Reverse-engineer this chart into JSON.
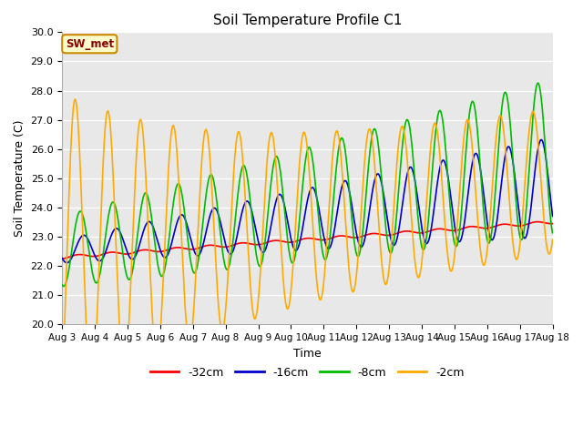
{
  "title": "Soil Temperature Profile C1",
  "xlabel": "Time",
  "ylabel": "Soil Temperature (C)",
  "ylim": [
    20.0,
    30.0
  ],
  "yticks": [
    20.0,
    21.0,
    22.0,
    23.0,
    24.0,
    25.0,
    26.0,
    27.0,
    28.0,
    29.0,
    30.0
  ],
  "plot_bg": "#e8e8e8",
  "fig_bg": "#ffffff",
  "grid_color": "#ffffff",
  "annotation_label": "SW_met",
  "annotation_color": "#8b0000",
  "annotation_bg": "#ffffcc",
  "annotation_border": "#cc8800",
  "colors": {
    "-32cm": "#ff0000",
    "-16cm": "#0000cc",
    "-8cm": "#00bb00",
    "-2cm": "#ffaa00"
  },
  "line_width": 1.2,
  "x_ticks": [
    3,
    4,
    5,
    6,
    7,
    8,
    9,
    10,
    11,
    12,
    13,
    14,
    15,
    16,
    17,
    18
  ],
  "x_tick_labels": [
    "Aug 3",
    "Aug 4",
    "Aug 5",
    "Aug 6",
    "Aug 7",
    "Aug 8",
    "Aug 9",
    "Aug 10",
    "Aug 11",
    "Aug 12",
    "Aug 13",
    "Aug 14",
    "Aug 15",
    "Aug 16",
    "Aug 17",
    "Aug 18"
  ]
}
